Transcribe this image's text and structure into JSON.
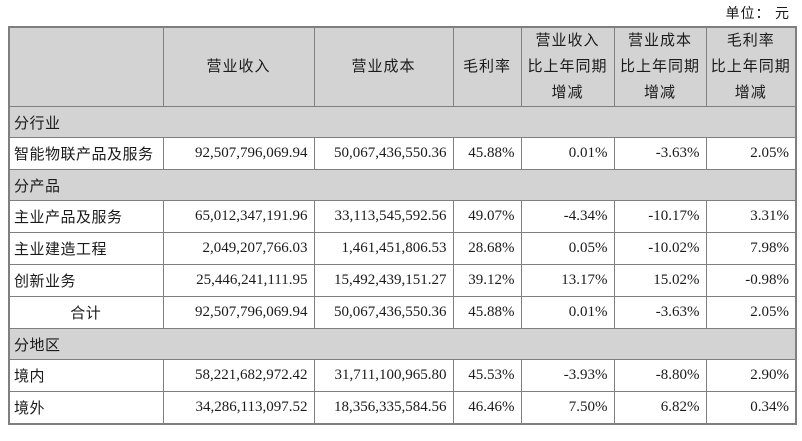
{
  "page": {
    "unit_label": "单位： 元"
  },
  "colors": {
    "header_bg": "#d3d3d3",
    "section_bg": "#d3d3d3",
    "border": "#7f7f7f",
    "text": "#1a1a1a"
  },
  "table": {
    "header": [
      {
        "label": ""
      },
      {
        "label": "营业收入"
      },
      {
        "label": "营业成本"
      },
      {
        "label": "毛利率"
      },
      {
        "label": "营业收入\n比上年同期\n增减"
      },
      {
        "label": "营业成本\n比上年同期\n增减"
      },
      {
        "label": "毛利率\n比上年同期\n增减"
      }
    ],
    "rows": [
      {
        "type": "section",
        "label": "分行业"
      },
      {
        "type": "data",
        "label": "智能物联产品及服务",
        "values": [
          "92,507,796,069.94",
          "50,067,436,550.36",
          "45.88%",
          "0.01%",
          "-3.63%",
          "2.05%"
        ]
      },
      {
        "type": "section",
        "label": "分产品"
      },
      {
        "type": "data",
        "label": "主业产品及服务",
        "values": [
          "65,012,347,191.96",
          "33,113,545,592.56",
          "49.07%",
          "-4.34%",
          "-10.17%",
          "3.31%"
        ]
      },
      {
        "type": "data",
        "label": "主业建造工程",
        "values": [
          "2,049,207,766.03",
          "1,461,451,806.53",
          "28.68%",
          "0.05%",
          "-10.02%",
          "7.98%"
        ]
      },
      {
        "type": "data",
        "label": "创新业务",
        "values": [
          "25,446,241,111.95",
          "15,492,439,151.27",
          "39.12%",
          "13.17%",
          "15.02%",
          "-0.98%"
        ]
      },
      {
        "type": "data",
        "label": "合计",
        "label_align": "center",
        "values": [
          "92,507,796,069.94",
          "50,067,436,550.36",
          "45.88%",
          "0.01%",
          "-3.63%",
          "2.05%"
        ]
      },
      {
        "type": "section",
        "label": "分地区"
      },
      {
        "type": "data",
        "label": "境内",
        "values": [
          "58,221,682,972.42",
          "31,711,100,965.80",
          "45.53%",
          "-3.93%",
          "-8.80%",
          "2.90%"
        ]
      },
      {
        "type": "data",
        "label": "境外",
        "values": [
          "34,286,113,097.52",
          "18,356,335,584.56",
          "46.46%",
          "7.50%",
          "6.82%",
          "0.34%"
        ]
      }
    ]
  }
}
